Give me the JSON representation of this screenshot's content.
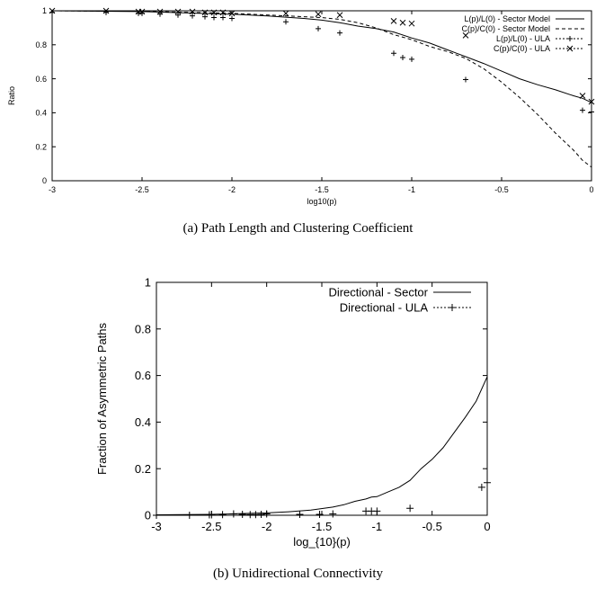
{
  "chart_data": [
    {
      "type": "line",
      "caption": "(a) Path Length and Clustering Coefficient",
      "xlabel": "log10(p)",
      "ylabel": "Ratio",
      "xlim": [
        -3,
        0
      ],
      "ylim": [
        0,
        1
      ],
      "xticks": [
        -3,
        -2.5,
        -2,
        -1.5,
        -1,
        -0.5,
        0
      ],
      "xtick_labels": [
        "-3",
        "-2.5",
        "-2",
        "-1.5",
        "-1",
        "-0.5",
        "0"
      ],
      "yticks": [
        0,
        0.2,
        0.4,
        0.6,
        0.8,
        1
      ],
      "ytick_labels": [
        "0",
        "0.2",
        "0.4",
        "0.6",
        "0.8",
        "1"
      ],
      "grid": false,
      "legend_position": "top-right",
      "series": [
        {
          "name": "L(p)/L(0) - Sector Model",
          "style": "solid",
          "x": [
            -3,
            -2.5,
            -2,
            -1.8,
            -1.6,
            -1.5,
            -1.4,
            -1.3,
            -1.2,
            -1.1,
            -1.0,
            -0.9,
            -0.8,
            -0.7,
            -0.6,
            -0.5,
            -0.4,
            -0.3,
            -0.2,
            -0.1,
            -0.05,
            0
          ],
          "y": [
            1.0,
            0.995,
            0.98,
            0.97,
            0.955,
            0.945,
            0.93,
            0.91,
            0.895,
            0.875,
            0.84,
            0.81,
            0.77,
            0.73,
            0.69,
            0.645,
            0.6,
            0.565,
            0.535,
            0.5,
            0.485,
            0.46
          ]
        },
        {
          "name": "C(p)/C(0) - Sector Model",
          "style": "dashed",
          "x": [
            -3,
            -2.5,
            -2,
            -1.8,
            -1.6,
            -1.5,
            -1.4,
            -1.3,
            -1.2,
            -1.1,
            -1.0,
            -0.9,
            -0.8,
            -0.7,
            -0.6,
            -0.5,
            -0.4,
            -0.3,
            -0.2,
            -0.1,
            -0.05,
            0
          ],
          "y": [
            1.0,
            0.997,
            0.985,
            0.975,
            0.965,
            0.96,
            0.95,
            0.93,
            0.9,
            0.86,
            0.83,
            0.79,
            0.76,
            0.72,
            0.66,
            0.58,
            0.49,
            0.39,
            0.28,
            0.18,
            0.12,
            0.08
          ]
        },
        {
          "name": "L(p)/L(0) - ULA",
          "marker": "plus",
          "x": [
            -3,
            -2.7,
            -2.52,
            -2.5,
            -2.4,
            -2.3,
            -2.22,
            -2.15,
            -2.1,
            -2.05,
            -2.0,
            -1.7,
            -1.52,
            -1.4,
            -1.1,
            -1.05,
            -1.0,
            -0.7,
            -0.05,
            0
          ],
          "y": [
            0.99,
            0.99,
            0.985,
            0.985,
            0.98,
            0.975,
            0.97,
            0.965,
            0.96,
            0.96,
            0.955,
            0.935,
            0.895,
            0.87,
            0.75,
            0.725,
            0.715,
            0.595,
            0.415,
            0.405
          ]
        },
        {
          "name": "C(p)/C(0) - ULA",
          "marker": "x",
          "x": [
            -3,
            -2.7,
            -2.52,
            -2.5,
            -2.4,
            -2.3,
            -2.22,
            -2.15,
            -2.1,
            -2.05,
            -2.0,
            -1.7,
            -1.52,
            -1.4,
            -1.1,
            -1.05,
            -1.0,
            -0.7,
            -0.05,
            0
          ],
          "y": [
            1.0,
            1.0,
            0.995,
            0.995,
            0.995,
            0.995,
            0.995,
            0.99,
            0.99,
            0.99,
            0.985,
            0.985,
            0.98,
            0.975,
            0.94,
            0.93,
            0.925,
            0.855,
            0.5,
            0.465
          ]
        }
      ]
    },
    {
      "type": "line",
      "caption": "(b) Unidirectional Connectivity",
      "xlabel": "log_{10}(p)",
      "ylabel": "Fraction of Asymmetric Paths",
      "xlim": [
        -3,
        0
      ],
      "ylim": [
        0,
        1
      ],
      "xticks": [
        -3,
        -2.5,
        -2,
        -1.5,
        -1,
        -0.5,
        0
      ],
      "xtick_labels": [
        "-3",
        "-2.5",
        "-2",
        "-1.5",
        "-1",
        "-0.5",
        "0"
      ],
      "yticks": [
        0,
        0.2,
        0.4,
        0.6,
        0.8,
        1
      ],
      "ytick_labels": [
        "0",
        "0.2",
        "0.4",
        "0.6",
        "0.8",
        "1"
      ],
      "grid": false,
      "legend_position": "top-right",
      "series": [
        {
          "name": "Directional - Sector",
          "style": "solid",
          "x": [
            -3,
            -2.5,
            -2.0,
            -1.8,
            -1.6,
            -1.4,
            -1.3,
            -1.2,
            -1.1,
            -1.05,
            -1.0,
            -0.9,
            -0.8,
            -0.7,
            -0.6,
            -0.5,
            -0.4,
            -0.3,
            -0.2,
            -0.1,
            0
          ],
          "y": [
            0.002,
            0.004,
            0.01,
            0.015,
            0.022,
            0.035,
            0.045,
            0.06,
            0.07,
            0.078,
            0.08,
            0.1,
            0.12,
            0.15,
            0.2,
            0.24,
            0.29,
            0.355,
            0.42,
            0.49,
            0.595
          ]
        },
        {
          "name": "Directional - ULA",
          "marker": "plus",
          "x": [
            -3,
            -2.7,
            -2.52,
            -2.5,
            -2.4,
            -2.3,
            -2.22,
            -2.15,
            -2.1,
            -2.05,
            -2.0,
            -1.7,
            -1.52,
            -1.4,
            -1.1,
            -1.05,
            -1.0,
            -0.7,
            -0.05,
            0
          ],
          "y": [
            0.0,
            0.0,
            0.002,
            0.002,
            0.003,
            0.006,
            0.004,
            0.003,
            0.003,
            0.004,
            0.006,
            0.004,
            0.004,
            0.006,
            0.018,
            0.018,
            0.018,
            0.03,
            0.12,
            0.14
          ]
        }
      ]
    }
  ]
}
